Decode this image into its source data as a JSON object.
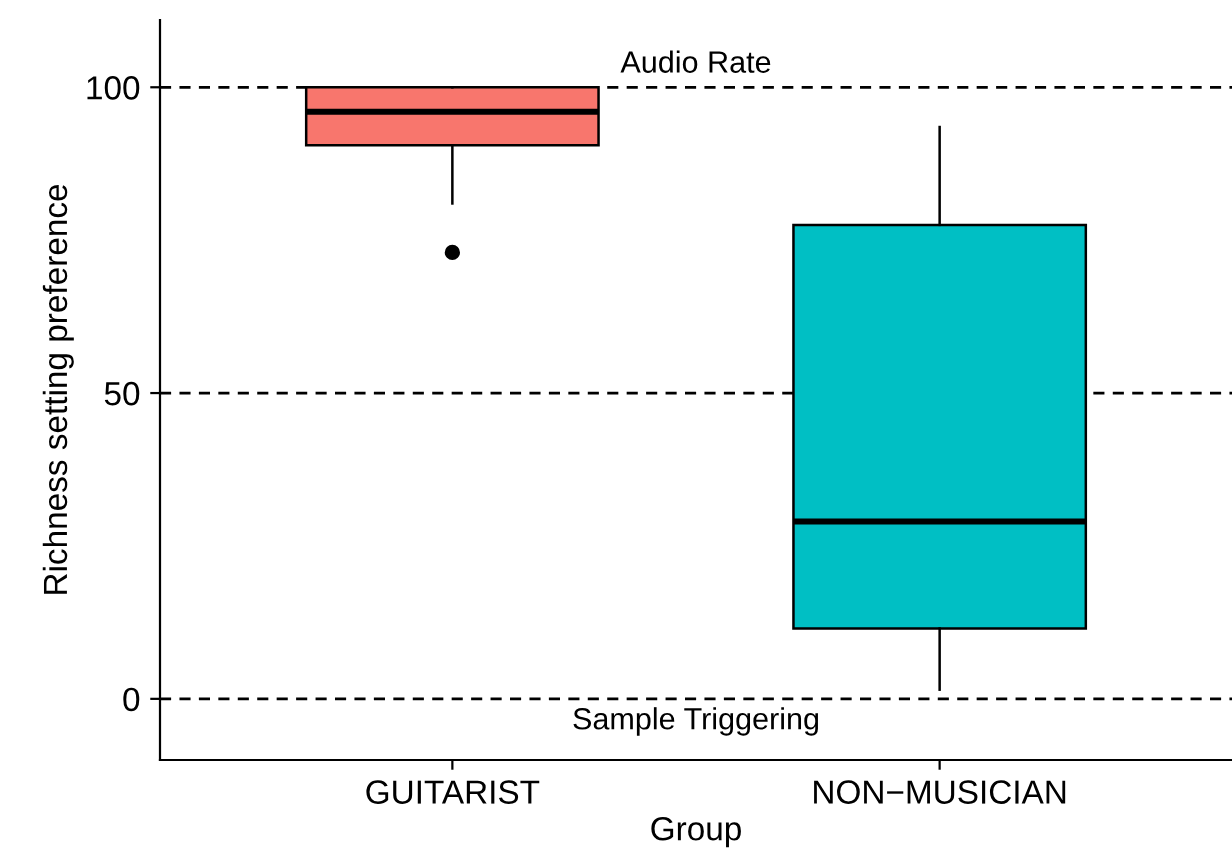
{
  "chart_data": {
    "type": "box",
    "xlabel": "Group",
    "ylabel": "Richness setting preference",
    "categories": [
      "GUITARIST",
      "NON−MUSICIAN"
    ],
    "colors": [
      "#f8766d",
      "#00bfc4"
    ],
    "boxes": [
      {
        "low": 81,
        "q1": 90.5,
        "median": 96,
        "q3": 100,
        "high": 100,
        "outliers": [
          73
        ]
      },
      {
        "low": 1.5,
        "q1": 11.5,
        "median": 29,
        "q3": 77.5,
        "high": 93.5
      }
    ],
    "ylim": [
      -10,
      111
    ],
    "yticks": [
      0,
      50,
      100
    ],
    "grid": false,
    "ref_lines": [
      {
        "axis": "y",
        "value": 100,
        "label": "Audio Rate",
        "line_style": "dashed"
      },
      {
        "axis": "y",
        "value": 50,
        "line_style": "dashed"
      },
      {
        "axis": "y",
        "value": 0,
        "label": "Sample Triggering",
        "line_style": "dashed"
      }
    ]
  }
}
